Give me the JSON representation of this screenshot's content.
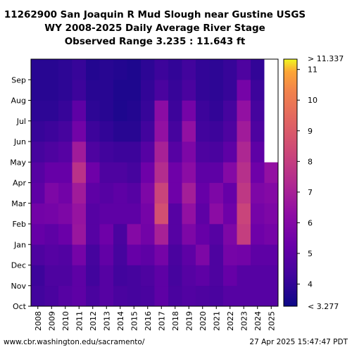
{
  "chart_data": {
    "type": "heatmap",
    "title_lines": [
      "11262900 San Joaquin R Mud Slough near Gustine USGS",
      "WY 2008-2025 Daily Average River Stage",
      "Observed Range 3.235 : 11.643 ft"
    ],
    "x_categories": [
      "2008",
      "2009",
      "2010",
      "2011",
      "2012",
      "2013",
      "2014",
      "2015",
      "2016",
      "2017",
      "2018",
      "2019",
      "2020",
      "2021",
      "2022",
      "2023",
      "2024",
      "2025"
    ],
    "y_months": [
      "Oct",
      "Nov",
      "Dec",
      "Jan",
      "Feb",
      "Mar",
      "Apr",
      "May",
      "Jun",
      "Jul",
      "Aug",
      "Sep"
    ],
    "colorbar": {
      "min": 3.277,
      "max": 11.337,
      "ticks": [
        4,
        5,
        6,
        7,
        8,
        9,
        10,
        11
      ],
      "top_label": "> 11.337",
      "bottom_label": "< 3.277"
    },
    "series": [
      {
        "name": "2008",
        "values": [
          4.3,
          4.2,
          4.6,
          5.2,
          5.5,
          5.0,
          4.8,
          4.4,
          4.1,
          3.9,
          3.8,
          3.8
        ]
      },
      {
        "name": "2009",
        "values": [
          4.5,
          4.6,
          4.8,
          5.0,
          5.6,
          5.8,
          5.2,
          4.6,
          4.2,
          3.9,
          3.8,
          3.8
        ]
      },
      {
        "name": "2010",
        "values": [
          4.8,
          4.6,
          4.7,
          5.3,
          5.8,
          5.5,
          5.2,
          4.8,
          4.4,
          4.1,
          3.9,
          3.9
        ]
      },
      {
        "name": "2011",
        "values": [
          5.0,
          5.0,
          5.6,
          6.6,
          6.5,
          6.8,
          7.6,
          6.8,
          5.5,
          5.0,
          4.2,
          4.1
        ]
      },
      {
        "name": "2012",
        "values": [
          4.5,
          4.3,
          4.4,
          4.8,
          4.8,
          5.0,
          5.4,
          4.6,
          4.2,
          3.9,
          3.8,
          3.7
        ]
      },
      {
        "name": "2013",
        "values": [
          4.8,
          4.8,
          5.1,
          5.4,
          5.0,
          4.8,
          4.6,
          4.3,
          4.0,
          3.8,
          3.8,
          3.8
        ]
      },
      {
        "name": "2014",
        "values": [
          4.5,
          4.3,
          4.4,
          4.5,
          5.0,
          5.0,
          4.6,
          4.2,
          3.8,
          3.6,
          3.6,
          3.7
        ]
      },
      {
        "name": "2015",
        "values": [
          4.4,
          4.4,
          5.2,
          6.0,
          5.0,
          4.8,
          4.4,
          4.2,
          3.8,
          3.7,
          3.6,
          3.6
        ]
      },
      {
        "name": "2016",
        "values": [
          4.5,
          4.6,
          5.0,
          5.5,
          5.6,
          5.8,
          5.4,
          4.8,
          4.3,
          4.1,
          4.0,
          3.9
        ]
      },
      {
        "name": "2017",
        "values": [
          5.0,
          5.0,
          5.6,
          7.0,
          8.6,
          8.2,
          7.4,
          7.0,
          6.4,
          6.2,
          4.5,
          4.2
        ]
      },
      {
        "name": "2018",
        "values": [
          4.5,
          4.4,
          4.5,
          4.8,
          4.8,
          5.4,
          5.4,
          4.8,
          4.4,
          4.2,
          4.1,
          4.0
        ]
      },
      {
        "name": "2019",
        "values": [
          4.7,
          4.8,
          5.0,
          5.8,
          6.4,
          6.9,
          6.2,
          5.8,
          6.4,
          5.6,
          4.5,
          4.3
        ]
      },
      {
        "name": "2020",
        "values": [
          4.6,
          5.0,
          5.8,
          5.2,
          5.0,
          5.2,
          5.0,
          4.6,
          4.3,
          4.2,
          4.0,
          4.0
        ]
      },
      {
        "name": "2021",
        "values": [
          4.5,
          4.6,
          4.6,
          4.8,
          6.2,
          5.8,
          5.0,
          4.5,
          4.2,
          4.0,
          3.9,
          3.9
        ]
      },
      {
        "name": "2022",
        "values": [
          4.8,
          5.2,
          5.6,
          5.8,
          5.4,
          5.2,
          6.0,
          5.0,
          4.6,
          4.4,
          4.1,
          4.1
        ]
      },
      {
        "name": "2023",
        "values": [
          4.8,
          4.8,
          5.5,
          8.0,
          8.2,
          7.8,
          7.5,
          7.2,
          6.8,
          6.4,
          5.6,
          4.6
        ]
      },
      {
        "name": "2024",
        "values": [
          4.8,
          4.8,
          5.0,
          5.4,
          5.6,
          5.8,
          5.4,
          5.0,
          4.6,
          4.4,
          4.2,
          4.0
        ]
      },
      {
        "name": "2025",
        "values": [
          4.8,
          4.8,
          5.0,
          5.6,
          5.8,
          6.0,
          6.4,
          null,
          null,
          null,
          null,
          null
        ]
      }
    ]
  },
  "footer": {
    "source": "www.cbr.washington.edu/sacramento/",
    "timestamp": "27 Apr 2025 15:47:47 PDT"
  }
}
